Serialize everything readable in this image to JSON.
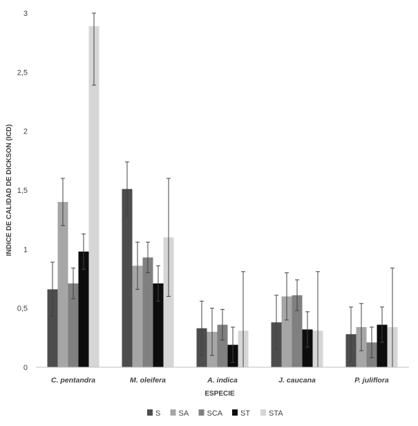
{
  "chart_data": {
    "type": "bar",
    "title": "",
    "xlabel": "ESPECIE",
    "ylabel": "INDICE DE CALIDAD DE DICKSON (ICD)",
    "ylim": [
      0,
      3
    ],
    "yticks": [
      0,
      0.5,
      1,
      1.5,
      2,
      2.5,
      3
    ],
    "ytick_labels": [
      "0",
      "0,5",
      "1",
      "1,5",
      "2",
      "2,5",
      "3"
    ],
    "categories": [
      "C. pentandra",
      "M. oleifera",
      "A. indica",
      "J. caucana",
      "P. juliflora"
    ],
    "grid": false,
    "legend_position": "bottom",
    "series": [
      {
        "name": "S",
        "color": "#4d4d4d",
        "values": [
          0.66,
          1.51,
          0.33,
          0.38,
          0.28
        ],
        "errors": [
          0.23,
          0.23,
          0.23,
          0.23,
          0.23
        ]
      },
      {
        "name": "SA",
        "color": "#a6a6a6",
        "values": [
          1.4,
          0.86,
          0.3,
          0.6,
          0.34
        ],
        "errors": [
          0.2,
          0.2,
          0.2,
          0.2,
          0.2
        ]
      },
      {
        "name": "SCA",
        "color": "#808080",
        "values": [
          0.71,
          0.93,
          0.36,
          0.61,
          0.21
        ],
        "errors": [
          0.13,
          0.13,
          0.13,
          0.13,
          0.13
        ]
      },
      {
        "name": "ST",
        "color": "#0d0d0d",
        "values": [
          0.98,
          0.71,
          0.19,
          0.32,
          0.36
        ],
        "errors": [
          0.15,
          0.15,
          0.15,
          0.15,
          0.15
        ]
      },
      {
        "name": "STA",
        "color": "#d6d6d6",
        "values": [
          2.89,
          1.1,
          0.31,
          0.31,
          0.34
        ],
        "errors": [
          0.5,
          0.5,
          0.5,
          0.5,
          0.5
        ]
      }
    ]
  }
}
